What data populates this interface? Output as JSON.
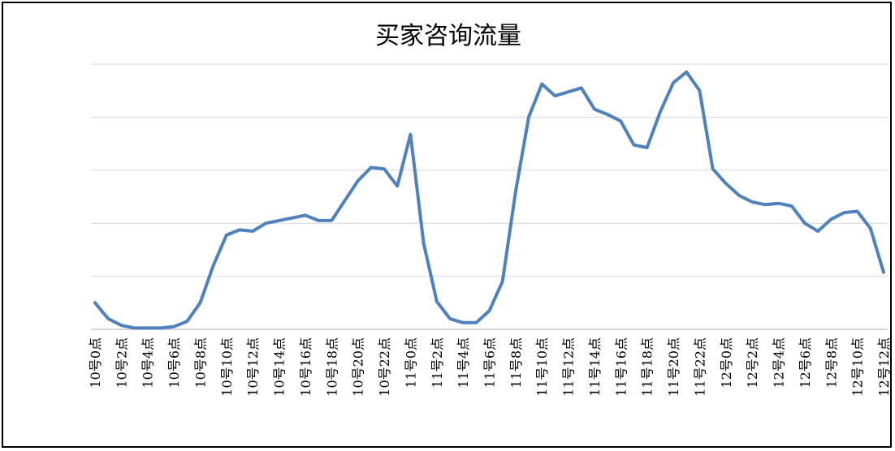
{
  "chart_data": {
    "type": "line",
    "title": "买家咨询流量",
    "xlabel": "",
    "ylabel": "",
    "grid": true,
    "legend": "none",
    "ylim": [
      0,
      100
    ],
    "colors": {
      "line": "#4f81bd",
      "grid": "#d9d9d9",
      "axis": "#bfbfbf"
    },
    "x": [
      "10号0点",
      "10号1点",
      "10号2点",
      "10号3点",
      "10号4点",
      "10号5点",
      "10号6点",
      "10号7点",
      "10号8点",
      "10号9点",
      "10号10点",
      "10号11点",
      "10号12点",
      "10号13点",
      "10号14点",
      "10号15点",
      "10号16点",
      "10号17点",
      "10号18点",
      "10号19点",
      "10号20点",
      "10号21点",
      "10号22点",
      "10号23点",
      "11号0点",
      "11号1点",
      "11号2点",
      "11号3点",
      "11号4点",
      "11号5点",
      "11号6点",
      "11号7点",
      "11号8点",
      "11号9点",
      "11号10点",
      "11号11点",
      "11号12点",
      "11号13点",
      "11号14点",
      "11号15点",
      "11号16点",
      "11号17点",
      "11号18点",
      "11号19点",
      "11号20点",
      "11号21点",
      "11号22点",
      "11号23点",
      "12号0点",
      "12号1点",
      "12号2点",
      "12号3点",
      "12号4点",
      "12号5点",
      "12号6点",
      "12号7点",
      "12号8点",
      "12号9点",
      "12号10点",
      "12号11点",
      "12号12点"
    ],
    "tick_labels": [
      "10号0点",
      "10号2点",
      "10号4点",
      "10号6点",
      "10号8点",
      "10号10点",
      "10号12点",
      "10号14点",
      "10号16点",
      "10号18点",
      "10号20点",
      "10号22点",
      "11号0点",
      "11号2点",
      "11号4点",
      "11号6点",
      "11号8点",
      "11号10点",
      "11号12点",
      "11号14点",
      "11号16点",
      "11号18点",
      "11号20点",
      "11号22点",
      "12号0点",
      "12号2点",
      "12号4点",
      "12号6点",
      "12号8点",
      "12号10点",
      "12号12点"
    ],
    "series": [
      {
        "values": [
          10,
          4,
          1.5,
          0.5,
          0.5,
          0.5,
          1,
          3,
          10,
          24,
          35.5,
          37.5,
          37,
          40,
          41,
          42,
          43,
          41,
          41,
          48.5,
          56,
          61,
          60.5,
          54,
          73.5,
          32.5,
          10.5,
          4,
          2.5,
          2.5,
          7,
          18,
          52,
          80,
          92.5,
          88,
          89.5,
          91,
          83,
          81,
          78.5,
          69.5,
          68.5,
          82,
          93,
          97,
          90,
          60.5,
          55,
          50.5,
          48,
          47,
          47.5,
          46.5,
          40,
          37,
          41.5,
          44,
          44.5,
          38,
          21.5
        ]
      }
    ]
  }
}
